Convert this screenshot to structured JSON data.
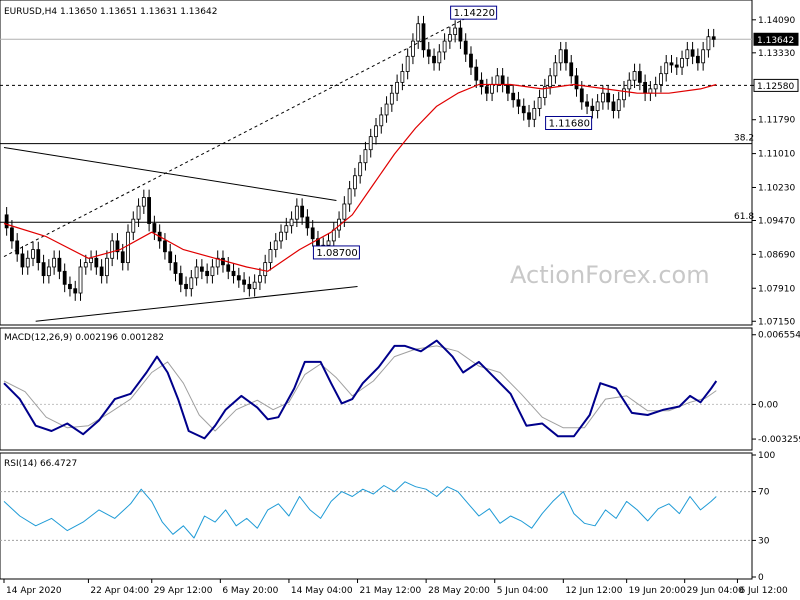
{
  "chart_data": [
    {
      "panel": "price",
      "type": "candlestick",
      "header": "EURUSD,H4  1.13650 1.13651 1.13631 1.13642",
      "watermark": "ActionForex.com",
      "yticks": [
        "1.14090",
        "1.13330",
        "1.12580",
        "1.11790",
        "1.11010",
        "1.10230",
        "1.09470",
        "1.08690",
        "1.07910",
        "1.07150"
      ],
      "ylim": [
        1.0711,
        1.145
      ],
      "current_price": "1.13642",
      "marked_level": "1.12580",
      "fib_labels": [
        {
          "label": "38.2",
          "value": 1.1124
        },
        {
          "label": "61.8",
          "value": 1.0943
        }
      ],
      "price_labels": [
        {
          "text": "1.14220",
          "value": 1.1422
        },
        {
          "text": "1.11680",
          "value": 1.1168
        },
        {
          "text": "1.08700",
          "value": 1.087
        }
      ],
      "close_path": [
        [
          0,
          1.096
        ],
        [
          2,
          1.09
        ],
        [
          4,
          1.084
        ],
        [
          6,
          1.088
        ],
        [
          8,
          1.082
        ],
        [
          10,
          1.086
        ],
        [
          12,
          1.08
        ],
        [
          14,
          1.078
        ],
        [
          15,
          1.084
        ],
        [
          17,
          1.086
        ],
        [
          19,
          1.082
        ],
        [
          21,
          1.09
        ],
        [
          23,
          1.085
        ],
        [
          24,
          1.092
        ],
        [
          26,
          1.098
        ],
        [
          27,
          1.1
        ],
        [
          28,
          1.094
        ],
        [
          30,
          1.09
        ],
        [
          32,
          1.085
        ],
        [
          34,
          1.08
        ],
        [
          35,
          1.079
        ],
        [
          37,
          1.084
        ],
        [
          39,
          1.082
        ],
        [
          41,
          1.086
        ],
        [
          43,
          1.083
        ],
        [
          45,
          1.081
        ],
        [
          47,
          1.079
        ],
        [
          49,
          1.082
        ],
        [
          51,
          1.088
        ],
        [
          53,
          1.092
        ],
        [
          55,
          1.095
        ],
        [
          56,
          1.098
        ],
        [
          58,
          1.093
        ],
        [
          60,
          1.088
        ],
        [
          62,
          1.09
        ],
        [
          64,
          1.095
        ],
        [
          66,
          1.102
        ],
        [
          68,
          1.108
        ],
        [
          70,
          1.114
        ],
        [
          72,
          1.119
        ],
        [
          74,
          1.124
        ],
        [
          76,
          1.129
        ],
        [
          78,
          1.136
        ],
        [
          79,
          1.14
        ],
        [
          80,
          1.134
        ],
        [
          82,
          1.131
        ],
        [
          84,
          1.136
        ],
        [
          86,
          1.139
        ],
        [
          88,
          1.133
        ],
        [
          90,
          1.127
        ],
        [
          92,
          1.124
        ],
        [
          94,
          1.128
        ],
        [
          96,
          1.124
        ],
        [
          98,
          1.121
        ],
        [
          100,
          1.118
        ],
        [
          102,
          1.123
        ],
        [
          104,
          1.128
        ],
        [
          106,
          1.134
        ],
        [
          108,
          1.128
        ],
        [
          110,
          1.122
        ],
        [
          112,
          1.12
        ],
        [
          114,
          1.124
        ],
        [
          116,
          1.12
        ],
        [
          118,
          1.125
        ],
        [
          120,
          1.129
        ],
        [
          122,
          1.124
        ],
        [
          124,
          1.126
        ],
        [
          126,
          1.131
        ],
        [
          128,
          1.13
        ],
        [
          130,
          1.134
        ],
        [
          132,
          1.131
        ],
        [
          134,
          1.137
        ],
        [
          135,
          1.1364
        ]
      ],
      "ma_path": [
        [
          0,
          1.094
        ],
        [
          8,
          1.091
        ],
        [
          16,
          1.086
        ],
        [
          22,
          1.088
        ],
        [
          28,
          1.092
        ],
        [
          34,
          1.088
        ],
        [
          40,
          1.086
        ],
        [
          46,
          1.084
        ],
        [
          50,
          1.083
        ],
        [
          56,
          1.088
        ],
        [
          62,
          1.092
        ],
        [
          66,
          1.096
        ],
        [
          70,
          1.103
        ],
        [
          74,
          1.11
        ],
        [
          78,
          1.116
        ],
        [
          82,
          1.121
        ],
        [
          86,
          1.124
        ],
        [
          90,
          1.126
        ],
        [
          96,
          1.126
        ],
        [
          102,
          1.125
        ],
        [
          108,
          1.126
        ],
        [
          114,
          1.125
        ],
        [
          120,
          1.124
        ],
        [
          126,
          1.124
        ],
        [
          132,
          1.125
        ],
        [
          135,
          1.126
        ]
      ],
      "trendlines": [
        {
          "from": [
            0,
            1.1115
          ],
          "to": [
            63,
            1.0993
          ]
        },
        {
          "from": [
            6,
            1.0715
          ],
          "to": [
            67,
            1.0795
          ]
        },
        {
          "from": [
            0,
            1.0864
          ],
          "to": [
            89,
            1.1422
          ],
          "style": "dashed"
        }
      ]
    },
    {
      "panel": "macd",
      "type": "line",
      "header": "MACD(12,26,9) 0.002196 0.001282",
      "yticks": [
        "0.006554",
        "0.00",
        "-0.003259"
      ],
      "ylim": [
        -0.0041,
        0.007
      ],
      "series": [
        {
          "values": [
            [
              0,
              0.002
            ],
            [
              3,
              0.0005
            ],
            [
              6,
              -0.002
            ],
            [
              9,
              -0.0025
            ],
            [
              12,
              -0.0018
            ],
            [
              15,
              -0.0028
            ],
            [
              18,
              -0.0015
            ],
            [
              21,
              0.0005
            ],
            [
              24,
              0.001
            ],
            [
              27,
              0.003
            ],
            [
              29,
              0.0045
            ],
            [
              31,
              0.003
            ],
            [
              33,
              0.0005
            ],
            [
              35,
              -0.0025
            ],
            [
              38,
              -0.0032
            ],
            [
              40,
              -0.002
            ],
            [
              42,
              -0.0005
            ],
            [
              45,
              0.0008
            ],
            [
              48,
              -0.0003
            ],
            [
              50,
              -0.0014
            ],
            [
              52,
              -0.0012
            ],
            [
              55,
              0.0015
            ],
            [
              57,
              0.004
            ],
            [
              60,
              0.004
            ],
            [
              62,
              0.002
            ],
            [
              64,
              0.0001
            ],
            [
              66,
              0.0005
            ],
            [
              68,
              0.002
            ],
            [
              71,
              0.0035
            ],
            [
              74,
              0.0055
            ],
            [
              76,
              0.0055
            ],
            [
              79,
              0.005
            ],
            [
              82,
              0.006
            ],
            [
              85,
              0.0045
            ],
            [
              87,
              0.003
            ],
            [
              90,
              0.004
            ],
            [
              93,
              0.0025
            ],
            [
              96,
              0.001
            ],
            [
              99,
              -0.002
            ],
            [
              102,
              -0.0018
            ],
            [
              105,
              -0.003
            ],
            [
              108,
              -0.003
            ],
            [
              111,
              -0.001
            ],
            [
              113,
              0.002
            ],
            [
              116,
              0.0015
            ],
            [
              119,
              -0.0008
            ],
            [
              122,
              -0.001
            ],
            [
              125,
              -0.0005
            ],
            [
              128,
              -0.0002
            ],
            [
              130,
              0.0008
            ],
            [
              132,
              0.0002
            ],
            [
              134,
              0.0015
            ],
            [
              135,
              0.0022
            ]
          ]
        },
        {
          "values": [
            [
              0,
              0.0022
            ],
            [
              4,
              0.0012
            ],
            [
              8,
              -0.0012
            ],
            [
              12,
              -0.0022
            ],
            [
              16,
              -0.002
            ],
            [
              20,
              -0.0008
            ],
            [
              24,
              0.0005
            ],
            [
              28,
              0.003
            ],
            [
              31,
              0.004
            ],
            [
              34,
              0.002
            ],
            [
              37,
              -0.001
            ],
            [
              40,
              -0.0025
            ],
            [
              44,
              -0.0005
            ],
            [
              48,
              0.0004
            ],
            [
              51,
              -0.0005
            ],
            [
              54,
              0.0002
            ],
            [
              57,
              0.0028
            ],
            [
              60,
              0.0038
            ],
            [
              63,
              0.0025
            ],
            [
              66,
              0.0008
            ],
            [
              70,
              0.0022
            ],
            [
              74,
              0.0045
            ],
            [
              78,
              0.0052
            ],
            [
              82,
              0.0055
            ],
            [
              86,
              0.005
            ],
            [
              90,
              0.0036
            ],
            [
              94,
              0.003
            ],
            [
              98,
              0.001
            ],
            [
              102,
              -0.0012
            ],
            [
              106,
              -0.0022
            ],
            [
              110,
              -0.0022
            ],
            [
              114,
              0.0005
            ],
            [
              118,
              0.0008
            ],
            [
              122,
              -0.0006
            ],
            [
              126,
              -0.0006
            ],
            [
              130,
              0.0002
            ],
            [
              133,
              0.0006
            ],
            [
              135,
              0.0013
            ]
          ]
        }
      ]
    },
    {
      "panel": "rsi",
      "type": "line",
      "header": "RSI(14) 66.4727",
      "yticks": [
        "100",
        "70",
        "30",
        "0"
      ],
      "ylim": [
        0,
        100
      ],
      "levels": [
        70,
        30
      ],
      "series": [
        {
          "values": [
            [
              0,
              62
            ],
            [
              3,
              50
            ],
            [
              6,
              42
            ],
            [
              9,
              48
            ],
            [
              12,
              38
            ],
            [
              15,
              45
            ],
            [
              18,
              55
            ],
            [
              21,
              48
            ],
            [
              24,
              60
            ],
            [
              26,
              72
            ],
            [
              28,
              62
            ],
            [
              30,
              45
            ],
            [
              32,
              35
            ],
            [
              34,
              42
            ],
            [
              36,
              32
            ],
            [
              38,
              50
            ],
            [
              40,
              45
            ],
            [
              42,
              55
            ],
            [
              44,
              42
            ],
            [
              46,
              48
            ],
            [
              48,
              40
            ],
            [
              50,
              55
            ],
            [
              52,
              60
            ],
            [
              54,
              50
            ],
            [
              56,
              66
            ],
            [
              58,
              55
            ],
            [
              60,
              48
            ],
            [
              62,
              62
            ],
            [
              64,
              70
            ],
            [
              66,
              66
            ],
            [
              68,
              72
            ],
            [
              70,
              68
            ],
            [
              72,
              75
            ],
            [
              74,
              70
            ],
            [
              76,
              78
            ],
            [
              78,
              74
            ],
            [
              80,
              72
            ],
            [
              82,
              66
            ],
            [
              84,
              74
            ],
            [
              86,
              70
            ],
            [
              88,
              60
            ],
            [
              90,
              50
            ],
            [
              92,
              56
            ],
            [
              94,
              44
            ],
            [
              96,
              50
            ],
            [
              98,
              46
            ],
            [
              100,
              40
            ],
            [
              102,
              52
            ],
            [
              104,
              62
            ],
            [
              106,
              70
            ],
            [
              108,
              52
            ],
            [
              110,
              44
            ],
            [
              112,
              42
            ],
            [
              114,
              55
            ],
            [
              116,
              48
            ],
            [
              118,
              62
            ],
            [
              120,
              55
            ],
            [
              122,
              46
            ],
            [
              124,
              56
            ],
            [
              126,
              60
            ],
            [
              128,
              52
            ],
            [
              130,
              66
            ],
            [
              132,
              55
            ],
            [
              134,
              62
            ],
            [
              135,
              66
            ]
          ]
        }
      ]
    }
  ],
  "x_axis": {
    "labels": [
      {
        "text": "14 Apr 2020",
        "index": 0
      },
      {
        "text": "22 Apr 04:00",
        "index": 16
      },
      {
        "text": "29 Apr 12:00",
        "index": 28
      },
      {
        "text": "6 May 20:00",
        "index": 41
      },
      {
        "text": "14 May 04:00",
        "index": 54
      },
      {
        "text": "21 May 12:00",
        "index": 67
      },
      {
        "text": "28 May 20:00",
        "index": 80
      },
      {
        "text": "5 Jun 04:00",
        "index": 93
      },
      {
        "text": "12 Jun 12:00",
        "index": 106
      },
      {
        "text": "19 Jun 20:00",
        "index": 118
      },
      {
        "text": "29 Jun 04:00",
        "index": 129
      },
      {
        "text": "6 Jul 12:00",
        "index": 139
      }
    ],
    "xlim": [
      0,
      141
    ]
  },
  "colors": {
    "price_line": "#000000",
    "ma": "#e00000",
    "macd": "#00008b",
    "signal": "#a0a0a0",
    "rsi": "#1f9bd6",
    "current_label_bg": "#000000",
    "grid": "#000000"
  }
}
